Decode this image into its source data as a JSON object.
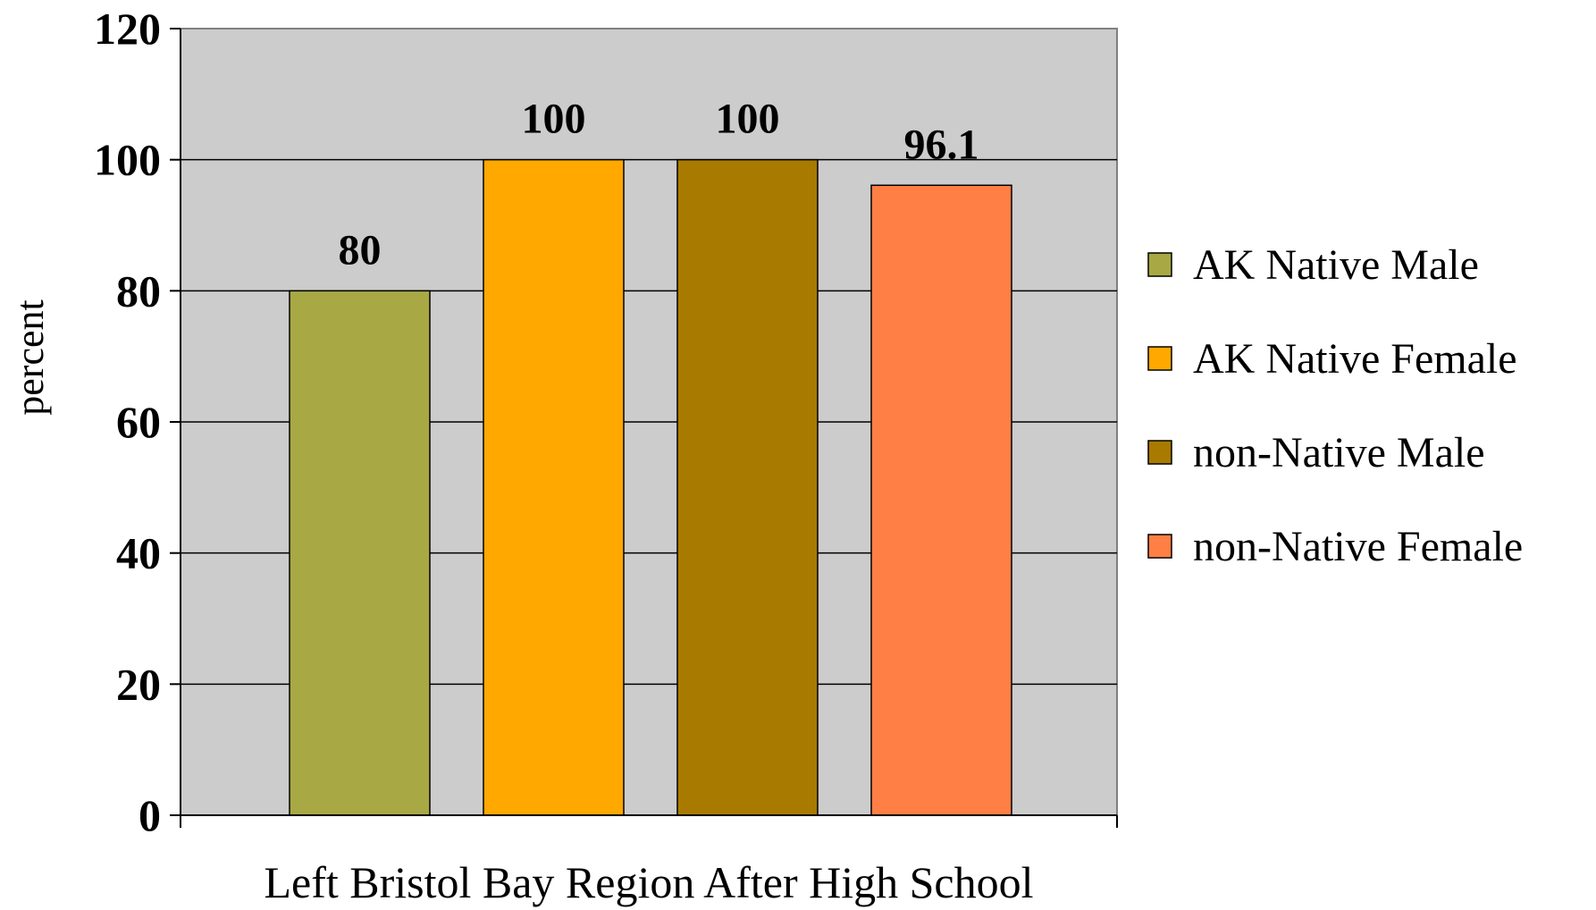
{
  "chart_data": {
    "type": "bar",
    "categories": [
      "Left Bristol Bay Region After High School"
    ],
    "series": [
      {
        "name": "AK Native Male",
        "values": [
          80
        ],
        "color": "#A8A845",
        "label": "80"
      },
      {
        "name": "AK Native Female",
        "values": [
          100
        ],
        "color": "#FFA800",
        "label": "100"
      },
      {
        "name": "non-Native Male",
        "values": [
          100
        ],
        "color": "#A87A00",
        "label": "100"
      },
      {
        "name": "non-Native Female",
        "values": [
          96.1
        ],
        "color": "#FF7F45",
        "label": "96.1"
      }
    ],
    "title": "",
    "xlabel": "",
    "ylabel": "percent",
    "ylim": [
      0,
      120
    ],
    "yticks": [
      0,
      20,
      40,
      60,
      80,
      100,
      120
    ],
    "ytick_labels": [
      "0",
      "20",
      "40",
      "60",
      "80",
      "100",
      "120"
    ],
    "grid": true,
    "legend_position": "right",
    "plot_background": "#CCCCCC"
  }
}
